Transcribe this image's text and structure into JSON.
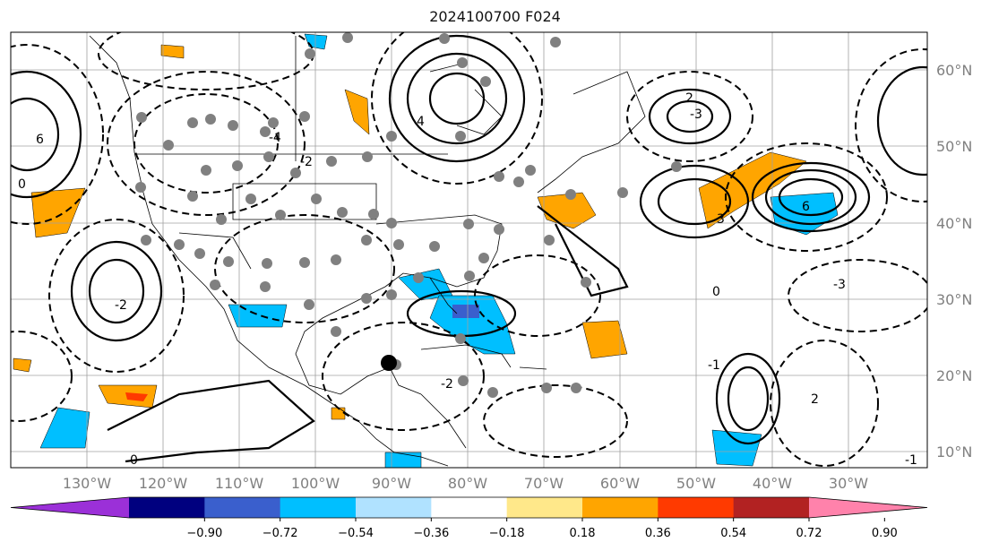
{
  "title": "2024100700 F024",
  "map": {
    "lon_ticks": [
      "130°W",
      "120°W",
      "110°W",
      "100°W",
      "90°W",
      "80°W",
      "70°W",
      "60°W",
      "50°W",
      "40°W",
      "30°W"
    ],
    "lat_ticks": [
      "60°N",
      "50°N",
      "40°N",
      "30°N",
      "20°N",
      "10°N"
    ],
    "contour_labels": [
      "0",
      "-2",
      "4",
      "6",
      "2",
      "-3",
      "-4",
      "-2",
      "3",
      "6",
      "-3",
      "0",
      "-1",
      "2",
      "-2",
      "0",
      "-1"
    ]
  },
  "colorbar": {
    "ticks": [
      "−0.90",
      "−0.72",
      "−0.54",
      "−0.36",
      "−0.18",
      "0.18",
      "0.36",
      "0.54",
      "0.72",
      "0.90"
    ],
    "colors": [
      "#9b30d8",
      "#00007f",
      "#3a5fcd",
      "#00bfff",
      "#b0e2ff",
      "#ffffff",
      "#ffe88a",
      "#ffa500",
      "#ff3a00",
      "#b22222",
      "#ff82ab"
    ]
  }
}
